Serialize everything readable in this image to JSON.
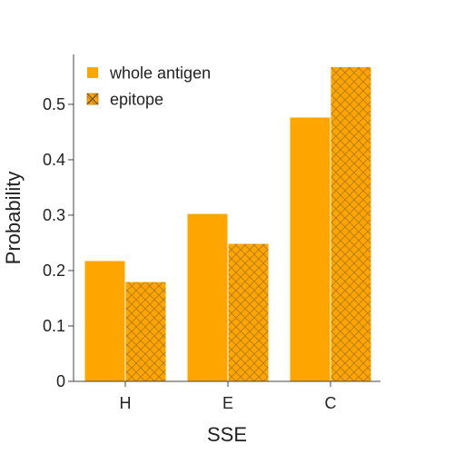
{
  "chart_data": {
    "type": "bar",
    "categories": [
      "H",
      "E",
      "C"
    ],
    "series": [
      {
        "name": "whole antigen",
        "values": [
          0.218,
          0.303,
          0.477
        ],
        "color": "#FFA500",
        "pattern": "solid"
      },
      {
        "name": "epitope",
        "values": [
          0.18,
          0.249,
          0.568
        ],
        "color": "#FFA500",
        "pattern": "crosshatch"
      }
    ],
    "xlabel": "SSE",
    "ylabel": "Probability",
    "ylim": [
      0,
      0.59
    ],
    "yticks": [
      0,
      0.1,
      0.2,
      0.3,
      0.4,
      0.5
    ],
    "ytick_labels": [
      "0",
      "0.1",
      "0.2",
      "0.3",
      "0.4",
      "0.5"
    ],
    "legend": {
      "position": "top-left"
    },
    "grid": false,
    "hatch_color": "#B8801A",
    "axis_color": "#444444"
  }
}
